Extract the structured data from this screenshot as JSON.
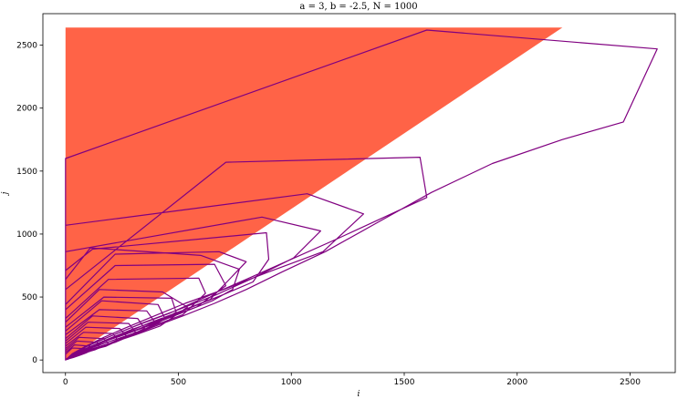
{
  "chart_data": {
    "type": "line",
    "title": "a = 3, b = -2.5, N = 1000",
    "xlabel": "i",
    "ylabel": "j",
    "xlim": [
      -100,
      2700
    ],
    "ylim": [
      -100,
      2750
    ],
    "xticks": [
      0,
      500,
      1000,
      1500,
      2000,
      2500
    ],
    "yticks": [
      0,
      500,
      1000,
      1500,
      2000,
      2500
    ],
    "grid": false,
    "colors": {
      "region": "#ff6347",
      "trajectory": "#800080"
    },
    "region": {
      "name": "",
      "points": [
        [
          0,
          0
        ],
        [
          0,
          2640
        ],
        [
          2200,
          2640
        ]
      ]
    },
    "series": [
      {
        "name": "",
        "points": [
          [
            0,
            0
          ],
          [
            35,
            30
          ],
          [
            80,
            55
          ],
          [
            140,
            95
          ],
          [
            210,
            140
          ],
          [
            300,
            200
          ],
          [
            400,
            270
          ],
          [
            520,
            350
          ],
          [
            660,
            450
          ],
          [
            800,
            560
          ],
          [
            960,
            700
          ],
          [
            1150,
            860
          ],
          [
            1370,
            1080
          ],
          [
            1620,
            1330
          ],
          [
            1890,
            1560
          ],
          [
            2200,
            1750
          ],
          [
            2470,
            1890
          ],
          [
            2620,
            2470
          ],
          [
            1600,
            2620
          ],
          [
            0,
            1600
          ],
          [
            0,
            0
          ],
          [
            40,
            60
          ],
          [
            110,
            120
          ],
          [
            200,
            190
          ],
          [
            310,
            270
          ],
          [
            460,
            370
          ],
          [
            620,
            500
          ],
          [
            800,
            640
          ],
          [
            1000,
            800
          ],
          [
            1200,
            960
          ],
          [
            1600,
            1290
          ],
          [
            1570,
            1610
          ],
          [
            710,
            1570
          ],
          [
            0,
            560
          ],
          [
            0,
            0
          ],
          [
            30,
            50
          ],
          [
            90,
            110
          ],
          [
            170,
            180
          ],
          [
            260,
            250
          ],
          [
            380,
            340
          ],
          [
            530,
            450
          ],
          [
            700,
            560
          ],
          [
            900,
            700
          ],
          [
            1140,
            860
          ],
          [
            1320,
            1160
          ],
          [
            1070,
            1320
          ],
          [
            0,
            1070
          ],
          [
            0,
            0
          ],
          [
            25,
            40
          ],
          [
            80,
            100
          ],
          [
            160,
            160
          ],
          [
            240,
            220
          ],
          [
            350,
            300
          ],
          [
            500,
            400
          ],
          [
            670,
            520
          ],
          [
            830,
            650
          ],
          [
            1010,
            810
          ],
          [
            1130,
            1025
          ],
          [
            870,
            1135
          ],
          [
            0,
            860
          ],
          [
            0,
            0
          ],
          [
            30,
            45
          ],
          [
            100,
            100
          ],
          [
            180,
            160
          ],
          [
            290,
            240
          ],
          [
            420,
            320
          ],
          [
            560,
            420
          ],
          [
            700,
            520
          ],
          [
            830,
            620
          ],
          [
            900,
            800
          ],
          [
            890,
            1010
          ],
          [
            120,
            880
          ],
          [
            0,
            710
          ],
          [
            0,
            0
          ],
          [
            25,
            35
          ],
          [
            80,
            80
          ],
          [
            160,
            140
          ],
          [
            260,
            200
          ],
          [
            380,
            280
          ],
          [
            510,
            370
          ],
          [
            650,
            470
          ],
          [
            740,
            560
          ],
          [
            770,
            720
          ],
          [
            600,
            830
          ],
          [
            110,
            890
          ],
          [
            0,
            640
          ],
          [
            0,
            0
          ],
          [
            30,
            40
          ],
          [
            90,
            90
          ],
          [
            170,
            150
          ],
          [
            270,
            220
          ],
          [
            380,
            300
          ],
          [
            500,
            380
          ],
          [
            640,
            480
          ],
          [
            800,
            780
          ],
          [
            680,
            860
          ],
          [
            220,
            840
          ],
          [
            0,
            440
          ],
          [
            0,
            0
          ],
          [
            20,
            30
          ],
          [
            70,
            70
          ],
          [
            140,
            120
          ],
          [
            220,
            180
          ],
          [
            330,
            250
          ],
          [
            440,
            330
          ],
          [
            580,
            420
          ],
          [
            710,
            590
          ],
          [
            660,
            760
          ],
          [
            220,
            750
          ],
          [
            0,
            400
          ],
          [
            0,
            0
          ],
          [
            20,
            30
          ],
          [
            60,
            60
          ],
          [
            120,
            100
          ],
          [
            200,
            150
          ],
          [
            300,
            210
          ],
          [
            400,
            280
          ],
          [
            520,
            360
          ],
          [
            620,
            530
          ],
          [
            590,
            650
          ],
          [
            190,
            640
          ],
          [
            0,
            330
          ],
          [
            0,
            0
          ],
          [
            20,
            25
          ],
          [
            60,
            55
          ],
          [
            130,
            95
          ],
          [
            210,
            140
          ],
          [
            310,
            200
          ],
          [
            420,
            270
          ],
          [
            540,
            420
          ],
          [
            430,
            540
          ],
          [
            150,
            560
          ],
          [
            0,
            300
          ],
          [
            0,
            0
          ],
          [
            20,
            25
          ],
          [
            50,
            50
          ],
          [
            110,
            80
          ],
          [
            180,
            120
          ],
          [
            260,
            170
          ],
          [
            370,
            250
          ],
          [
            490,
            380
          ],
          [
            470,
            490
          ],
          [
            170,
            500
          ],
          [
            0,
            260
          ],
          [
            0,
            0
          ],
          [
            15,
            20
          ],
          [
            45,
            40
          ],
          [
            100,
            70
          ],
          [
            160,
            110
          ],
          [
            240,
            160
          ],
          [
            330,
            220
          ],
          [
            440,
            330
          ],
          [
            410,
            440
          ],
          [
            160,
            470
          ],
          [
            0,
            230
          ],
          [
            0,
            0
          ],
          [
            15,
            20
          ],
          [
            40,
            35
          ],
          [
            90,
            60
          ],
          [
            150,
            100
          ],
          [
            220,
            140
          ],
          [
            300,
            200
          ],
          [
            400,
            290
          ],
          [
            360,
            390
          ],
          [
            150,
            400
          ],
          [
            0,
            200
          ],
          [
            0,
            0
          ],
          [
            10,
            15
          ],
          [
            35,
            30
          ],
          [
            80,
            55
          ],
          [
            130,
            90
          ],
          [
            200,
            130
          ],
          [
            270,
            180
          ],
          [
            350,
            250
          ],
          [
            320,
            330
          ],
          [
            120,
            350
          ],
          [
            0,
            170
          ],
          [
            0,
            0
          ],
          [
            10,
            15
          ],
          [
            30,
            25
          ],
          [
            70,
            45
          ],
          [
            120,
            80
          ],
          [
            180,
            110
          ],
          [
            240,
            160
          ],
          [
            310,
            220
          ],
          [
            280,
            290
          ],
          [
            100,
            300
          ],
          [
            0,
            150
          ],
          [
            0,
            0
          ],
          [
            10,
            10
          ],
          [
            30,
            20
          ],
          [
            60,
            40
          ],
          [
            100,
            65
          ],
          [
            150,
            95
          ],
          [
            210,
            140
          ],
          [
            270,
            190
          ],
          [
            240,
            250
          ],
          [
            90,
            260
          ],
          [
            0,
            130
          ],
          [
            0,
            0
          ],
          [
            10,
            10
          ],
          [
            25,
            20
          ],
          [
            55,
            35
          ],
          [
            90,
            60
          ],
          [
            130,
            80
          ],
          [
            180,
            120
          ],
          [
            230,
            160
          ],
          [
            210,
            210
          ],
          [
            80,
            220
          ],
          [
            0,
            110
          ],
          [
            0,
            0
          ],
          [
            5,
            10
          ],
          [
            20,
            15
          ],
          [
            45,
            30
          ],
          [
            75,
            50
          ],
          [
            110,
            70
          ],
          [
            150,
            100
          ],
          [
            190,
            130
          ],
          [
            170,
            170
          ],
          [
            60,
            180
          ],
          [
            0,
            90
          ],
          [
            0,
            0
          ],
          [
            5,
            5
          ],
          [
            15,
            10
          ],
          [
            35,
            20
          ],
          [
            60,
            35
          ],
          [
            90,
            55
          ],
          [
            120,
            80
          ],
          [
            150,
            100
          ],
          [
            140,
            140
          ],
          [
            50,
            150
          ],
          [
            0,
            75
          ],
          [
            0,
            0
          ],
          [
            5,
            5
          ],
          [
            15,
            10
          ],
          [
            30,
            20
          ],
          [
            50,
            30
          ],
          [
            70,
            45
          ],
          [
            95,
            60
          ],
          [
            120,
            80
          ],
          [
            110,
            110
          ],
          [
            40,
            120
          ],
          [
            0,
            60
          ],
          [
            0,
            0
          ],
          [
            5,
            5
          ],
          [
            10,
            5
          ],
          [
            20,
            15
          ],
          [
            35,
            25
          ],
          [
            55,
            35
          ],
          [
            75,
            50
          ],
          [
            95,
            65
          ],
          [
            85,
            90
          ],
          [
            30,
            95
          ],
          [
            0,
            45
          ],
          [
            0,
            0
          ]
        ]
      }
    ]
  }
}
